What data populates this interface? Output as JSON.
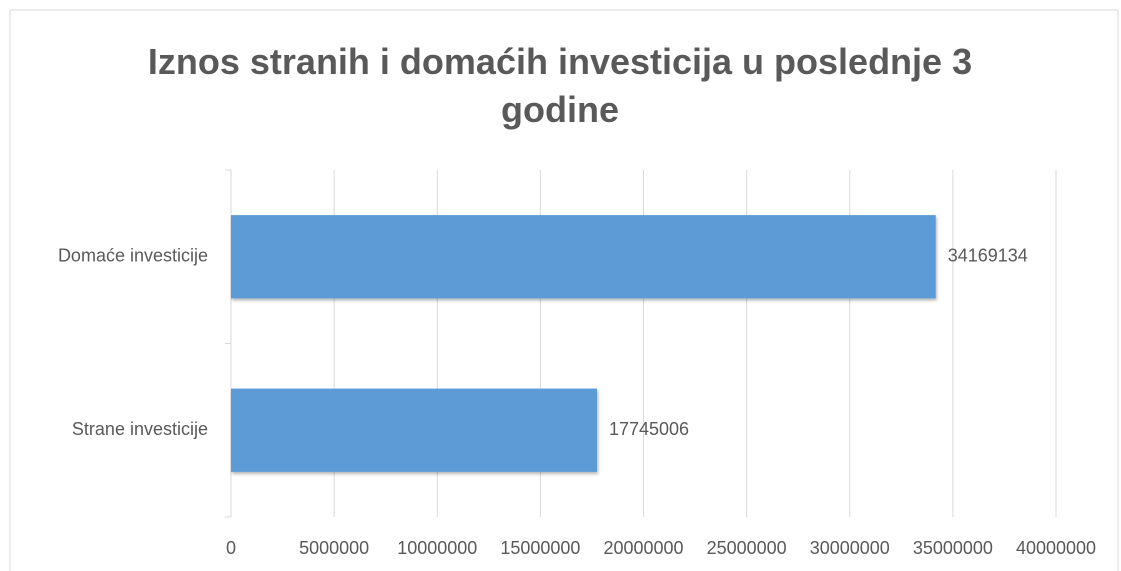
{
  "chart_data": {
    "type": "bar",
    "orientation": "horizontal",
    "title": "Iznos stranih i domaćih investicija u poslednje 3 godine",
    "categories": [
      "Domaće investicije",
      "Strane investicije"
    ],
    "values": [
      34169134,
      17745006
    ],
    "color": "#5b9bd5",
    "xlim": [
      0,
      40000000
    ],
    "xticks": [
      0,
      5000000,
      10000000,
      15000000,
      20000000,
      25000000,
      30000000,
      35000000,
      40000000
    ],
    "grid": true
  }
}
